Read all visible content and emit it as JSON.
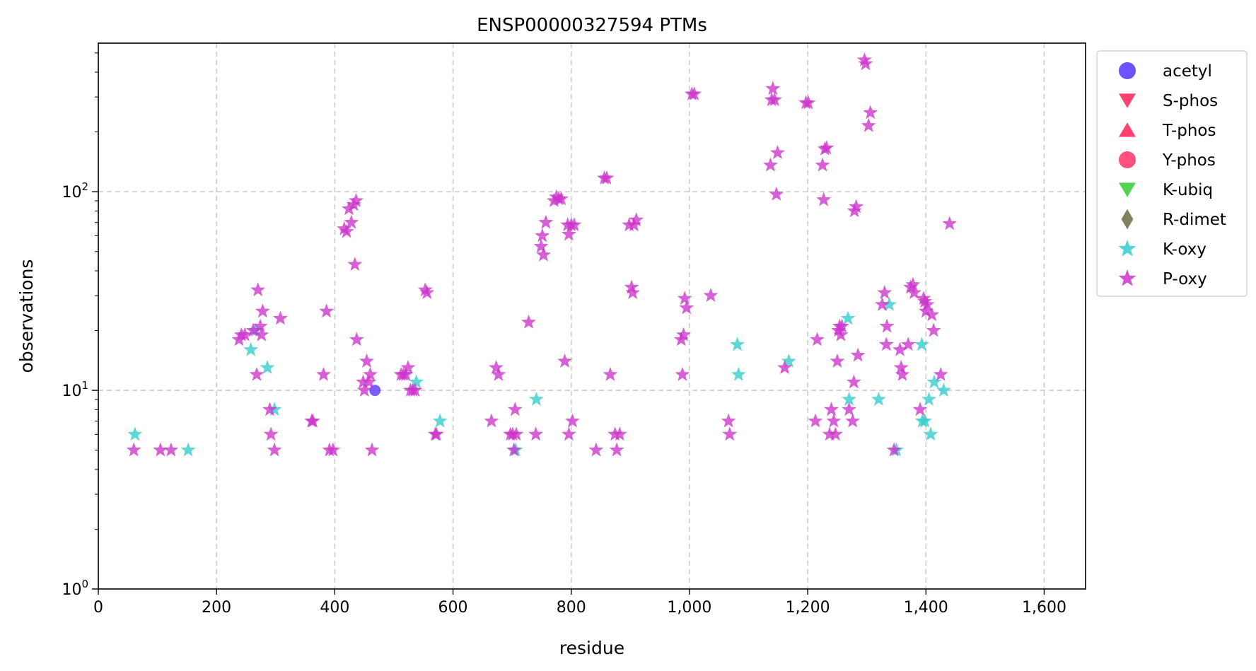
{
  "chart_data": {
    "type": "scatter",
    "title": "ENSP00000327594 PTMs",
    "xlabel": "residue",
    "ylabel": "observations",
    "xlim": [
      0,
      1670
    ],
    "ylim": [
      1,
      560
    ],
    "yscale": "log",
    "grid": true,
    "legend_position": "outside-right",
    "x_ticks": [
      0,
      200,
      400,
      600,
      800,
      1000,
      1200,
      1400,
      1600
    ],
    "x_tick_labels": [
      "0",
      "200",
      "400",
      "600",
      "800",
      "1,000",
      "1,200",
      "1,400",
      "1,600"
    ],
    "y_ticks": [
      1,
      10,
      100
    ],
    "y_tick_labels": [
      {
        "base": "10",
        "exp": "0"
      },
      {
        "base": "10",
        "exp": "1"
      },
      {
        "base": "10",
        "exp": "2"
      }
    ],
    "series": [
      {
        "name": "acetyl",
        "marker": "circle",
        "color": "#5533ff",
        "points": [
          [
            468,
            10
          ]
        ]
      },
      {
        "name": "S-phos",
        "marker": "triangle-down",
        "color": "#ff2255",
        "points": []
      },
      {
        "name": "T-phos",
        "marker": "triangle-up",
        "color": "#ff2255",
        "points": []
      },
      {
        "name": "Y-phos",
        "marker": "circle",
        "color": "#ff3366",
        "points": []
      },
      {
        "name": "K-ubiq",
        "marker": "triangle-down",
        "color": "#33cc33",
        "points": []
      },
      {
        "name": "R-dimet",
        "marker": "diamond",
        "color": "#6b6b47",
        "points": []
      },
      {
        "name": "K-oxy",
        "marker": "star",
        "color": "#33cccc",
        "points": [
          [
            62,
            6
          ],
          [
            152,
            5
          ],
          [
            258,
            16
          ],
          [
            266,
            20
          ],
          [
            286,
            13
          ],
          [
            298,
            8
          ],
          [
            538,
            11
          ],
          [
            578,
            7
          ],
          [
            706,
            5
          ],
          [
            741,
            9
          ],
          [
            1081,
            17
          ],
          [
            1083,
            12
          ],
          [
            1168,
            14
          ],
          [
            1268,
            23
          ],
          [
            1270,
            9
          ],
          [
            1320,
            9
          ],
          [
            1338,
            27
          ],
          [
            1350,
            5
          ],
          [
            1393,
            17
          ],
          [
            1394,
            7
          ],
          [
            1398,
            7
          ],
          [
            1405,
            9
          ],
          [
            1408,
            6
          ],
          [
            1414,
            11
          ],
          [
            1430,
            10
          ]
        ]
      },
      {
        "name": "P-oxy",
        "marker": "star",
        "color": "#cc33cc",
        "points": [
          [
            60,
            5
          ],
          [
            105,
            5
          ],
          [
            123,
            5
          ],
          [
            238,
            18
          ],
          [
            242,
            19
          ],
          [
            248,
            19
          ],
          [
            262,
            20
          ],
          [
            268,
            12
          ],
          [
            270,
            32
          ],
          [
            274,
            21
          ],
          [
            276,
            19
          ],
          [
            278,
            25
          ],
          [
            290,
            8
          ],
          [
            292,
            6
          ],
          [
            298,
            5
          ],
          [
            308,
            23
          ],
          [
            361,
            7
          ],
          [
            363,
            7
          ],
          [
            381,
            12
          ],
          [
            386,
            25
          ],
          [
            391,
            5
          ],
          [
            397,
            5
          ],
          [
            416,
            65
          ],
          [
            420,
            63
          ],
          [
            424,
            82
          ],
          [
            428,
            70
          ],
          [
            432,
            86
          ],
          [
            436,
            90
          ],
          [
            434,
            43
          ],
          [
            437,
            18
          ],
          [
            448,
            11
          ],
          [
            450,
            10
          ],
          [
            454,
            14
          ],
          [
            458,
            11
          ],
          [
            460,
            12
          ],
          [
            463,
            5
          ],
          [
            512,
            12
          ],
          [
            516,
            12
          ],
          [
            520,
            12
          ],
          [
            524,
            13
          ],
          [
            528,
            10
          ],
          [
            532,
            10
          ],
          [
            536,
            10
          ],
          [
            553,
            32
          ],
          [
            556,
            31
          ],
          [
            570,
            6
          ],
          [
            572,
            6
          ],
          [
            665,
            7
          ],
          [
            673,
            13
          ],
          [
            677,
            12
          ],
          [
            697,
            6
          ],
          [
            701,
            6
          ],
          [
            703,
            5
          ],
          [
            705,
            8
          ],
          [
            707,
            6
          ],
          [
            728,
            22
          ],
          [
            740,
            6
          ],
          [
            749,
            53
          ],
          [
            751,
            60
          ],
          [
            753,
            48
          ],
          [
            757,
            70
          ],
          [
            771,
            90
          ],
          [
            775,
            94
          ],
          [
            779,
            92
          ],
          [
            783,
            92
          ],
          [
            789,
            14
          ],
          [
            794,
            68
          ],
          [
            796,
            61
          ],
          [
            800,
            68
          ],
          [
            802,
            7
          ],
          [
            805,
            68
          ],
          [
            796,
            6
          ],
          [
            842,
            5
          ],
          [
            856,
            117
          ],
          [
            860,
            117
          ],
          [
            866,
            12
          ],
          [
            874,
            6
          ],
          [
            877,
            5
          ],
          [
            882,
            6
          ],
          [
            898,
            68
          ],
          [
            902,
            33
          ],
          [
            904,
            31
          ],
          [
            906,
            68
          ],
          [
            910,
            72
          ],
          [
            986,
            18
          ],
          [
            988,
            12
          ],
          [
            990,
            19
          ],
          [
            992,
            29
          ],
          [
            995,
            26
          ],
          [
            1004,
            310
          ],
          [
            1008,
            310
          ],
          [
            1036,
            30
          ],
          [
            1066,
            7
          ],
          [
            1068,
            6
          ],
          [
            1137,
            136
          ],
          [
            1139,
            290
          ],
          [
            1141,
            330
          ],
          [
            1144,
            290
          ],
          [
            1147,
            97
          ],
          [
            1149,
            157
          ],
          [
            1161,
            13
          ],
          [
            1197,
            280
          ],
          [
            1201,
            280
          ],
          [
            1213,
            7
          ],
          [
            1216,
            18
          ],
          [
            1225,
            136
          ],
          [
            1227,
            91
          ],
          [
            1229,
            164
          ],
          [
            1232,
            166
          ],
          [
            1237,
            6
          ],
          [
            1240,
            8
          ],
          [
            1244,
            7
          ],
          [
            1247,
            6
          ],
          [
            1250,
            14
          ],
          [
            1252,
            20
          ],
          [
            1254,
            21
          ],
          [
            1256,
            19
          ],
          [
            1258,
            21
          ],
          [
            1276,
            7
          ],
          [
            1278,
            11
          ],
          [
            1279,
            80
          ],
          [
            1282,
            84
          ],
          [
            1285,
            15
          ],
          [
            1296,
            460
          ],
          [
            1298,
            440
          ],
          [
            1303,
            215
          ],
          [
            1306,
            250
          ],
          [
            1270,
            8
          ],
          [
            1326,
            27
          ],
          [
            1330,
            31
          ],
          [
            1334,
            21
          ],
          [
            1333,
            17
          ],
          [
            1346,
            5
          ],
          [
            1356,
            16
          ],
          [
            1358,
            13
          ],
          [
            1360,
            12
          ],
          [
            1370,
            17
          ],
          [
            1374,
            33
          ],
          [
            1378,
            34
          ],
          [
            1380,
            31
          ],
          [
            1390,
            8
          ],
          [
            1396,
            29
          ],
          [
            1398,
            28
          ],
          [
            1400,
            25
          ],
          [
            1402,
            27
          ],
          [
            1410,
            24
          ],
          [
            1413,
            20
          ],
          [
            1425,
            12
          ],
          [
            1440,
            69
          ]
        ]
      }
    ]
  }
}
